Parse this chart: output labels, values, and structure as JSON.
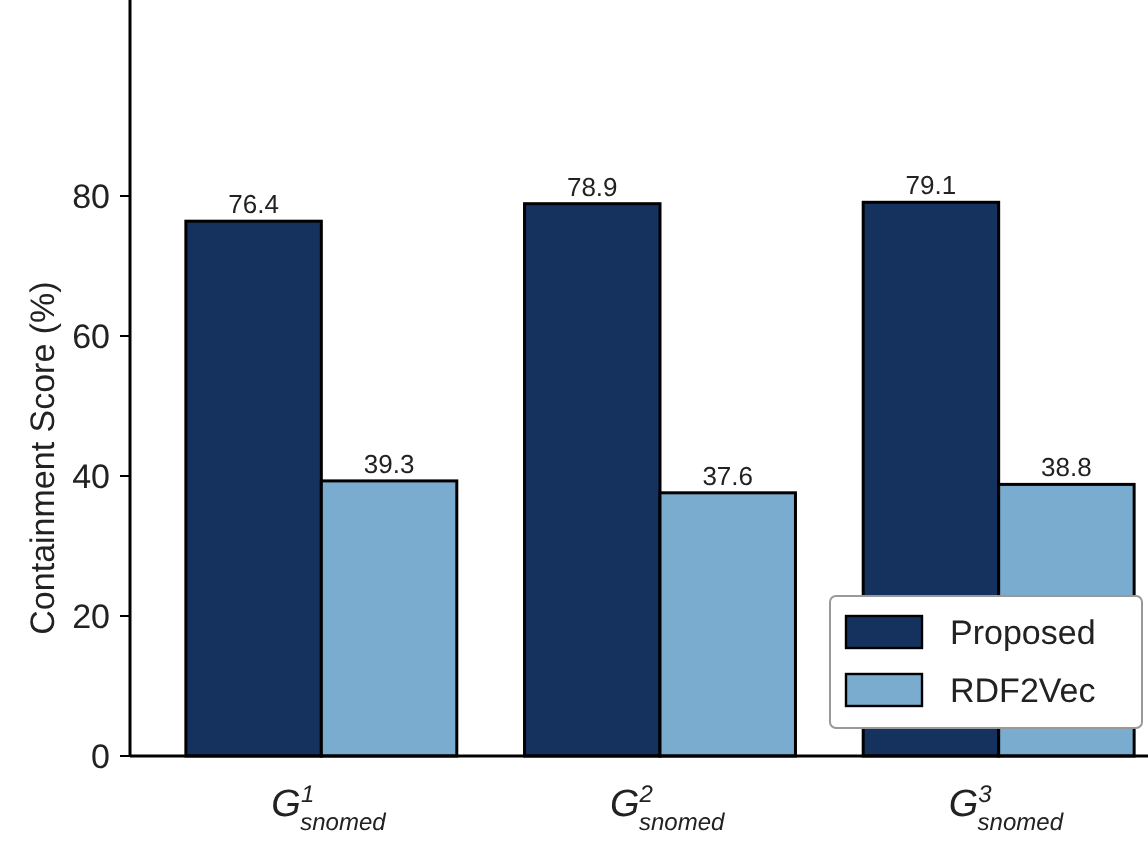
{
  "chart_data": {
    "type": "bar",
    "ylabel": "Containment Score (%)",
    "categories": [
      "G$^{1}$$_{snomed}$",
      "G$^{2}$$_{snomed}$",
      "G$^{3}$$_{snomed}$"
    ],
    "series": [
      {
        "name": "Proposed",
        "color": "#15325f",
        "values": [
          76.4,
          78.9,
          79.1
        ]
      },
      {
        "name": "RDF2Vec",
        "color": "#7aaccf",
        "values": [
          39.3,
          37.6,
          38.8
        ]
      }
    ],
    "ylim": [
      0,
      108
    ],
    "yticks": [
      0,
      20,
      40,
      60,
      80
    ],
    "data_labels": true,
    "legend": "bottom right",
    "grid": false
  }
}
